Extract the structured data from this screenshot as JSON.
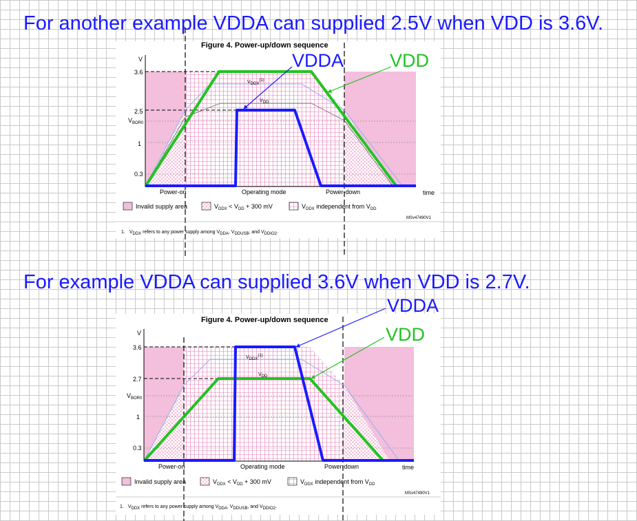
{
  "headings": [
    "For another example VDDA can supplied 2.5V when VDD is 3.6V.",
    "For example  VDDA can supplied 3.6V when VDD is 2.7V."
  ],
  "figures": [
    {
      "title": "Figure 4. Power-up/down sequence",
      "y_axis_label": "V",
      "x_axis_label": "time",
      "y_ticks": [
        "3.6",
        "2.5",
        "1",
        "0.3"
      ],
      "vbor0_label": "V",
      "vbor0_sub": "BOR0",
      "phases": [
        "Power-on",
        "Operating mode",
        "Power-down"
      ],
      "curve_labels": {
        "vddx": "V",
        "vddx_sub": "DDX",
        "vddx_sup": "(1)",
        "vdd": "V",
        "vdd_sub": "DD"
      },
      "legend": [
        {
          "text": "Invalid supply area"
        },
        {
          "text": "V",
          "sub": "DDX",
          "rest": " < V",
          "sub2": "DD",
          "rest2": " + 300 mV"
        },
        {
          "text": "V",
          "sub": "DDX",
          "rest": " independent from V",
          "sub2": "DD"
        }
      ],
      "code": "MSv47490V1",
      "footnote": {
        "num": "1.",
        "a": "V",
        "a_sub": "DDX",
        "b": " refers to any power supply among V",
        "b_sub": "DDA",
        "c": ", V",
        "c_sub": "DDUSB",
        "d": ", and V",
        "d_sub": "DDIO2",
        "e": "."
      },
      "annotations": {
        "vdda": "VDDA",
        "vdd": "VDD"
      },
      "series": [
        {
          "name": "VDDA",
          "color": "#1a1aff",
          "peak": 2.5
        },
        {
          "name": "VDD",
          "color": "#22c322",
          "peak": 3.6
        }
      ]
    },
    {
      "title": "Figure 4. Power-up/down sequence",
      "y_axis_label": "V",
      "x_axis_label": "time",
      "y_ticks": [
        "3.6",
        "2.7",
        "1",
        "0.3"
      ],
      "vbor0_label": "V",
      "vbor0_sub": "BOR0",
      "phases": [
        "Power-on",
        "Operating mode",
        "Power-down"
      ],
      "curve_labels": {
        "vddx": "V",
        "vddx_sub": "DDX",
        "vddx_sup": "(1)",
        "vdd": "V",
        "vdd_sub": "DD"
      },
      "legend": [
        {
          "text": "Invalid supply area"
        },
        {
          "text": "V",
          "sub": "DDX",
          "rest": " < V",
          "sub2": "DD",
          "rest2": " + 300 mV"
        },
        {
          "text": "V",
          "sub": "DDX",
          "rest": " independent from V",
          "sub2": "DD"
        }
      ],
      "code": "MSv47490V1",
      "footnote": {
        "num": "1.",
        "a": "V",
        "a_sub": "DDX",
        "b": " refers to any power supply among V",
        "b_sub": "DDA",
        "c": ", V",
        "c_sub": "DDUSB",
        "d": ", and V",
        "d_sub": "DDIO2",
        "e": "."
      },
      "annotations": {
        "vdda": "VDDA",
        "vdd": "VDD"
      },
      "series": [
        {
          "name": "VDDA",
          "color": "#1a1aff",
          "peak": 3.6
        },
        {
          "name": "VDD",
          "color": "#22c322",
          "peak": 2.7
        }
      ]
    }
  ]
}
